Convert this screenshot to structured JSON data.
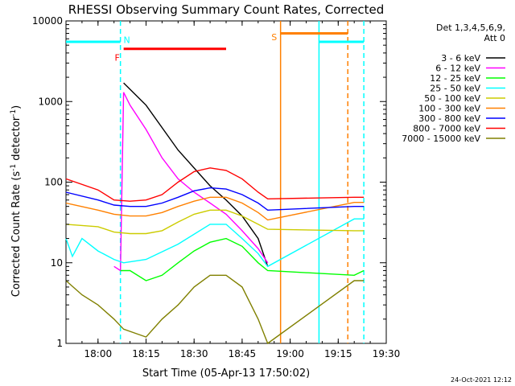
{
  "chart_data": {
    "type": "line",
    "title": "RHESSI Observing Summary Count Rates, Corrected",
    "xlabel": "Start Time (05-Apr-13 17:50:02)",
    "ylabel_main": "Corrected Count Rate (s",
    "ylabel_sup1": "-1",
    "ylabel_mid": " detector",
    "ylabel_sup2": "-1",
    "ylabel_end": ")",
    "yscale": "log",
    "ylim": [
      1,
      10000
    ],
    "xlim_minutes": [
      17.83,
      19.5
    ],
    "x_ticks": [
      "18:00",
      "18:15",
      "18:30",
      "18:45",
      "19:00",
      "19:15",
      "19:30"
    ],
    "y_ticks": [
      "1",
      "10",
      "100",
      "1000",
      "10000"
    ],
    "legend": {
      "header1": "Det 1,3,4,5,6,9,",
      "header2": "Att 0",
      "placement": "right"
    },
    "grid": false,
    "series": [
      {
        "name": "3 - 6 keV",
        "color": "#000000",
        "x": [
          "17:50",
          "18:07",
          "18:08",
          "18:15",
          "18:25",
          "18:35",
          "18:40",
          "18:45",
          "18:50",
          "18:53"
        ],
        "y": [
          null,
          null,
          1700,
          900,
          250,
          90,
          60,
          38,
          20,
          9
        ]
      },
      {
        "name": "6 - 12 keV",
        "color": "#ff00ff",
        "x": [
          "17:50",
          "18:05",
          "18:07",
          "18:08",
          "18:10",
          "18:15",
          "18:20",
          "18:25",
          "18:30",
          "18:35",
          "18:40",
          "18:45",
          "18:50",
          "18:53"
        ],
        "y": [
          null,
          9,
          8,
          1300,
          900,
          450,
          200,
          110,
          75,
          55,
          40,
          25,
          15,
          10
        ]
      },
      {
        "name": "12 - 25 keV",
        "color": "#00ff00",
        "x": [
          "17:50",
          "17:55",
          "18:00",
          "18:07",
          "18:10",
          "18:15",
          "18:20",
          "18:25",
          "18:30",
          "18:35",
          "18:40",
          "18:45",
          "18:50",
          "18:53",
          "19:20",
          "19:23"
        ],
        "y": [
          null,
          null,
          null,
          8,
          8,
          6,
          7,
          10,
          14,
          18,
          20,
          16,
          10,
          8,
          7,
          8
        ]
      },
      {
        "name": "25 - 50 keV",
        "color": "#00ffff",
        "x": [
          "17:50",
          "17:52",
          "17:55",
          "18:00",
          "18:05",
          "18:08",
          "18:15",
          "18:25",
          "18:35",
          "18:40",
          "18:45",
          "18:50",
          "18:53",
          "19:20",
          "19:23"
        ],
        "y": [
          20,
          12,
          20,
          14,
          11,
          10,
          11,
          17,
          30,
          30,
          20,
          13,
          9,
          35,
          35
        ]
      },
      {
        "name": "50 - 100 keV",
        "color": "#cccc00",
        "x": [
          "17:50",
          "18:00",
          "18:05",
          "18:10",
          "18:15",
          "18:20",
          "18:25",
          "18:30",
          "18:35",
          "18:40",
          "18:45",
          "18:50",
          "18:53",
          "19:20",
          "19:23"
        ],
        "y": [
          30,
          28,
          24,
          23,
          23,
          25,
          32,
          40,
          45,
          45,
          38,
          30,
          26,
          25,
          25
        ]
      },
      {
        "name": "100 - 300 keV",
        "color": "#ff8000",
        "x": [
          "17:50",
          "18:00",
          "18:05",
          "18:10",
          "18:15",
          "18:20",
          "18:25",
          "18:30",
          "18:35",
          "18:40",
          "18:45",
          "18:50",
          "18:53",
          "19:20",
          "19:23"
        ],
        "y": [
          55,
          45,
          40,
          38,
          38,
          42,
          50,
          58,
          65,
          65,
          55,
          42,
          34,
          56,
          56
        ]
      },
      {
        "name": "300 - 800 keV",
        "color": "#0000ff",
        "x": [
          "17:50",
          "18:00",
          "18:05",
          "18:10",
          "18:15",
          "18:20",
          "18:25",
          "18:30",
          "18:35",
          "18:40",
          "18:45",
          "18:50",
          "18:53",
          "19:20",
          "19:23"
        ],
        "y": [
          75,
          60,
          52,
          50,
          50,
          55,
          65,
          78,
          85,
          82,
          70,
          55,
          45,
          50,
          50
        ]
      },
      {
        "name": "800 - 7000 keV",
        "color": "#ff0000",
        "x": [
          "17:50",
          "18:00",
          "18:05",
          "18:10",
          "18:15",
          "18:20",
          "18:25",
          "18:30",
          "18:35",
          "18:40",
          "18:45",
          "18:50",
          "18:53",
          "19:20",
          "19:23"
        ],
        "y": [
          110,
          80,
          60,
          58,
          60,
          70,
          100,
          135,
          150,
          140,
          110,
          75,
          62,
          65,
          65
        ]
      },
      {
        "name": "7000 - 15000 keV",
        "color": "#808000",
        "x": [
          "17:50",
          "17:55",
          "18:00",
          "18:05",
          "18:08",
          "18:15",
          "18:20",
          "18:25",
          "18:30",
          "18:35",
          "18:40",
          "18:45",
          "18:50",
          "18:53",
          "19:20",
          "19:23"
        ],
        "y": [
          6,
          4,
          3,
          2,
          1.5,
          1.2,
          2,
          3,
          5,
          7,
          7,
          5,
          2,
          1,
          6,
          6
        ]
      }
    ],
    "annotations": [
      {
        "label": "N",
        "color": "#00ffff"
      },
      {
        "label": "F",
        "color": "#ff0000"
      },
      {
        "label": "S",
        "color": "#ff8000"
      }
    ],
    "state_bars": [
      {
        "kind": "night",
        "color": "#00ffff",
        "x_start": "17:50",
        "x_end": "18:07",
        "y": 5500
      },
      {
        "kind": "night",
        "color": "#00ffff",
        "x_start": "19:09",
        "x_end": "19:23",
        "y": 5500
      },
      {
        "kind": "flare",
        "color": "#ff0000",
        "x_start": "18:08",
        "x_end": "18:40",
        "y": 4500
      },
      {
        "kind": "saa",
        "color": "#ff8000",
        "x_start": "18:57",
        "x_end": "19:18",
        "y": 7000
      }
    ],
    "vlines": [
      {
        "color": "#00ffff",
        "x": "18:07",
        "style": "dashed"
      },
      {
        "color": "#ff8000",
        "x": "18:57",
        "style": "solid"
      },
      {
        "color": "#00ffff",
        "x": "19:09",
        "style": "solid"
      },
      {
        "color": "#ff8000",
        "x": "19:18",
        "style": "dashed"
      },
      {
        "color": "#00ffff",
        "x": "19:23",
        "style": "dashed"
      }
    ],
    "timestamp": "24-Oct-2021 12:12"
  }
}
